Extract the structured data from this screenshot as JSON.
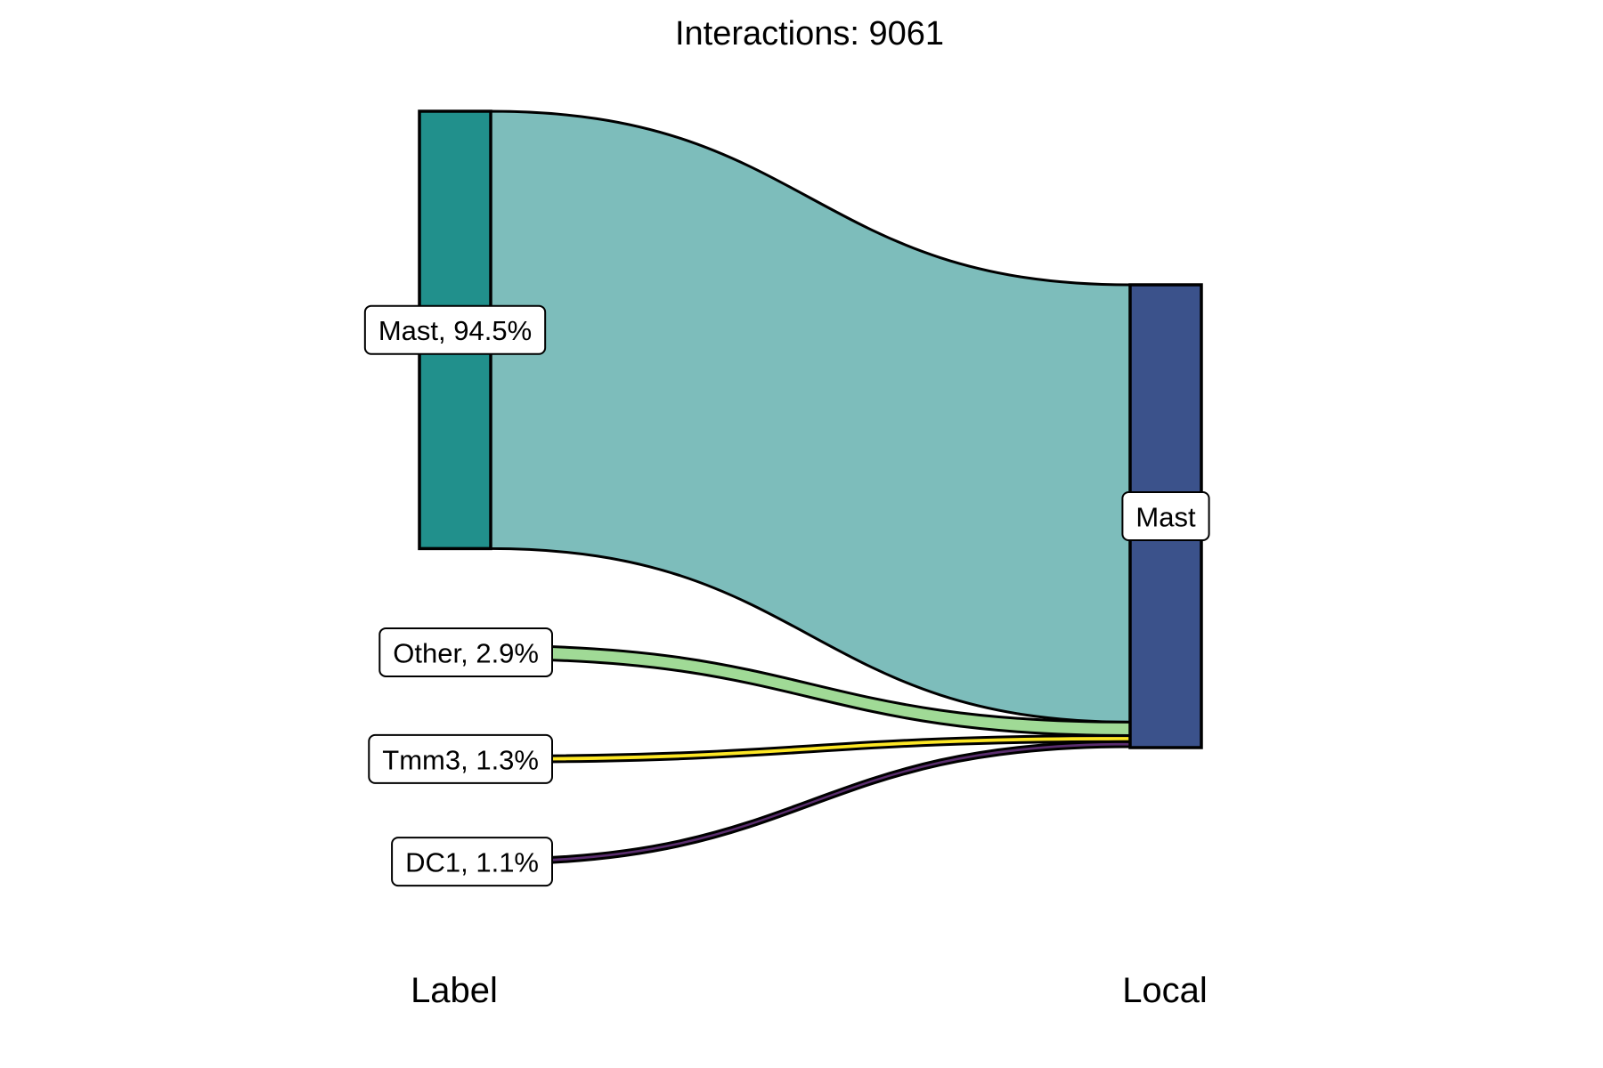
{
  "chart_data": {
    "type": "sankey",
    "title": "Interactions: 9061",
    "axes": [
      {
        "key": "left",
        "label": "Label"
      },
      {
        "key": "right",
        "label": "Local"
      }
    ],
    "nodes": [
      {
        "id": "mast_src",
        "axis": "left",
        "name": "Mast",
        "label": "Mast, 94.5%",
        "share": 94.5,
        "color": "#21908C",
        "show_bar": true
      },
      {
        "id": "other_src",
        "axis": "left",
        "name": "Other",
        "label": "Other, 2.9%",
        "share": 2.9,
        "color": "#A0DA96",
        "show_bar": false
      },
      {
        "id": "tmm3_src",
        "axis": "left",
        "name": "Tmm3",
        "label": "Tmm3, 1.3%",
        "share": 1.3,
        "color": "#FDE725",
        "show_bar": false
      },
      {
        "id": "dc1_src",
        "axis": "left",
        "name": "DC1",
        "label": "DC1, 1.1%",
        "share": 1.1,
        "color": "#440154",
        "show_bar": false
      },
      {
        "id": "mast_dst",
        "axis": "right",
        "name": "Mast",
        "label": "Mast",
        "share": 100.0,
        "color": "#3B528B",
        "show_bar": true
      }
    ],
    "flows": [
      {
        "from": "mast_src",
        "to": "mast_dst",
        "value": 94.5,
        "color": "#7DBDBB"
      },
      {
        "from": "other_src",
        "to": "mast_dst",
        "value": 2.9,
        "color": "#A0DA96"
      },
      {
        "from": "tmm3_src",
        "to": "mast_dst",
        "value": 1.3,
        "color": "#FDE725"
      },
      {
        "from": "dc1_src",
        "to": "mast_dst",
        "value": 1.1,
        "color": "#5A2D6E"
      }
    ]
  }
}
